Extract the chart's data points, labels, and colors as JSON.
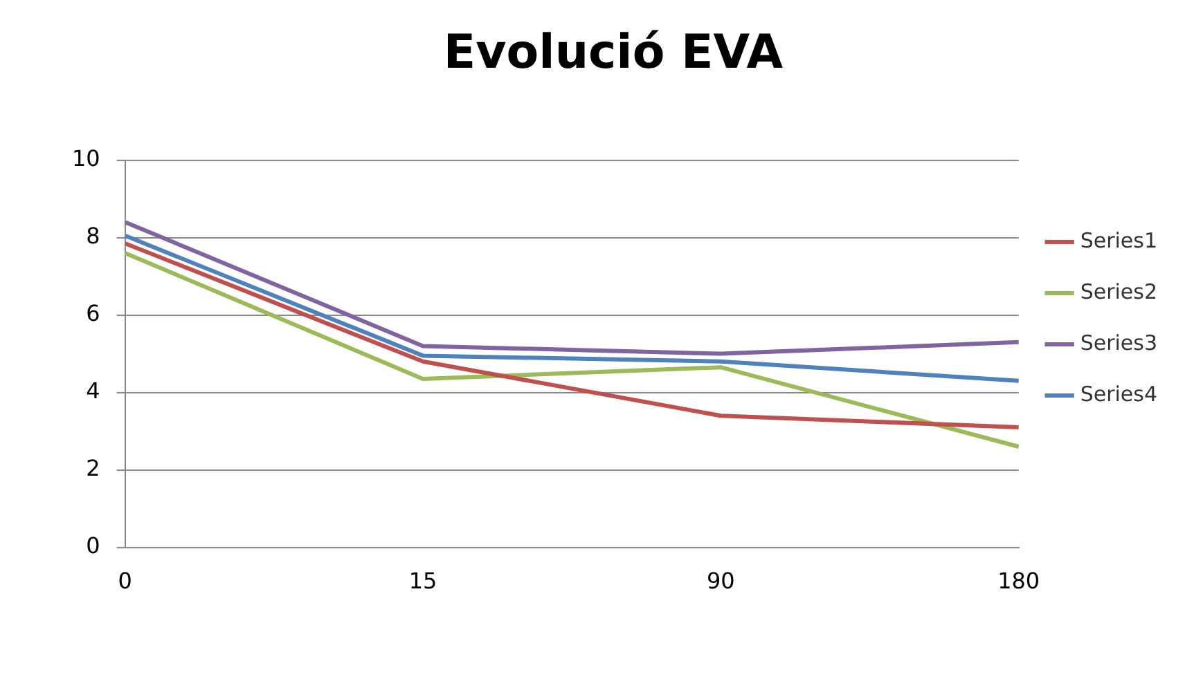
{
  "chart_data": {
    "type": "line",
    "title": "Evolució EVA",
    "categories": [
      "0",
      "15",
      "90",
      "180"
    ],
    "series": [
      {
        "name": "Series1",
        "color": "#c0504d",
        "values": [
          7.85,
          4.8,
          3.4,
          3.1
        ]
      },
      {
        "name": "Series2",
        "color": "#9bbb59",
        "values": [
          7.6,
          4.35,
          4.65,
          2.6
        ]
      },
      {
        "name": "Series3",
        "color": "#8064a2",
        "values": [
          8.4,
          5.2,
          5.0,
          5.3
        ]
      },
      {
        "name": "Series4",
        "color": "#4f81bd",
        "values": [
          8.05,
          4.95,
          4.8,
          4.3
        ]
      }
    ],
    "ylim": [
      0,
      10
    ],
    "yticks": [
      0,
      2,
      4,
      6,
      8,
      10
    ],
    "grid": "y",
    "legend": "right",
    "marker": "none",
    "line_style": "solid"
  }
}
